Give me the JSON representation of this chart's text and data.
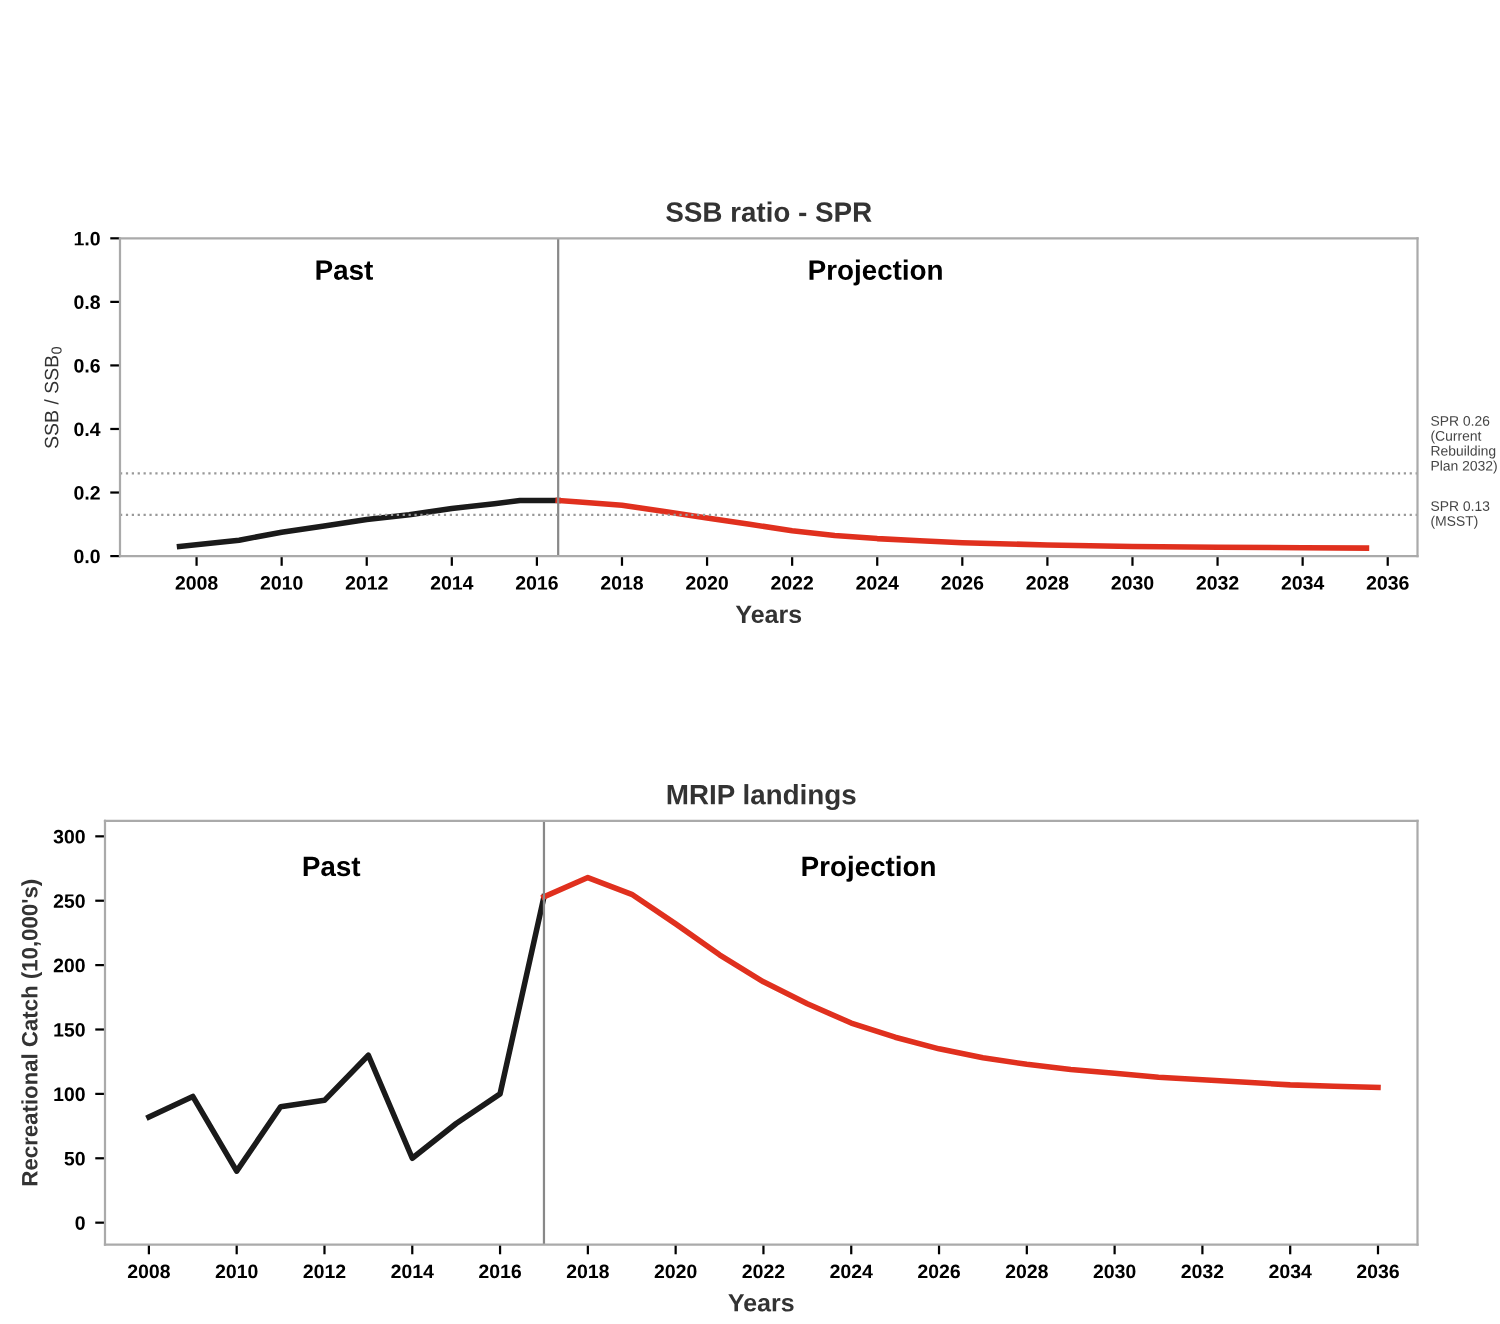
{
  "chart_data": [
    {
      "type": "line",
      "title": "SSB ratio - SPR",
      "xlabel": "Years",
      "ylabel": "SSB / SSB$_{0}$",
      "series": [
        {
          "color": "#1a1a1a",
          "x": [
            2007.6,
            2009,
            2010,
            2011,
            2012,
            2013,
            2014,
            2015,
            2015.6,
            2016.5
          ],
          "values": [
            0.03,
            0.05,
            0.075,
            0.095,
            0.115,
            0.13,
            0.15,
            0.165,
            0.175,
            0.175
          ]
        },
        {
          "color": "#e0301e",
          "x": [
            2016.5,
            2017,
            2018,
            2019,
            2020,
            2021,
            2022,
            2023,
            2024,
            2025,
            2026,
            2028,
            2030,
            2032,
            2034,
            2035.5
          ],
          "values": [
            0.175,
            0.17,
            0.16,
            0.14,
            0.12,
            0.1,
            0.08,
            0.065,
            0.055,
            0.048,
            0.042,
            0.035,
            0.03,
            0.028,
            0.026,
            0.025
          ]
        }
      ],
      "xlim": [
        2006.2,
        2036.7
      ],
      "xticks": [
        2008,
        2010,
        2012,
        2014,
        2016,
        2018,
        2020,
        2022,
        2024,
        2026,
        2028,
        2030,
        2032,
        2034,
        2036
      ],
      "ylim": [
        0,
        1.0
      ],
      "yticks": [
        {
          "value": 0,
          "label": "0.0"
        },
        0.2,
        0.4,
        0.6,
        0.8,
        {
          "value": 1.0,
          "label": "1.0"
        }
      ],
      "ref_lines": [
        {
          "axis": "x",
          "value": 2016.5,
          "color": "#888888",
          "line_style": "solid"
        },
        {
          "axis": "y",
          "value": 0.26,
          "label": "SPR 0.26 (Current Rebuilding Plan 2032)",
          "color": "#999999",
          "line_style": "dotted"
        },
        {
          "axis": "y",
          "value": 0.13,
          "label": "SPR 0.13 (MSST)",
          "color": "#999999",
          "line_style": "dotted"
        }
      ],
      "annotations": [
        "Past",
        "Projection"
      ],
      "grid": false,
      "line_style": "solid",
      "marker": "none"
    },
    {
      "type": "line",
      "title": "MRIP landings",
      "xlabel": "Years",
      "ylabel": "Recreational Catch (10,000's)",
      "series": [
        {
          "color": "#1a1a1a",
          "x": [
            2008,
            2009,
            2010,
            2011,
            2012,
            2013,
            2014,
            2015,
            2016,
            2017
          ],
          "values": [
            82,
            98,
            40,
            90,
            95,
            130,
            50,
            77,
            100,
            253
          ]
        },
        {
          "color": "#e0301e",
          "x": [
            2017,
            2018,
            2019,
            2020,
            2021,
            2022,
            2023,
            2024,
            2025,
            2026,
            2027,
            2028,
            2029,
            2030,
            2031,
            2032,
            2033,
            2034,
            2035,
            2036
          ],
          "values": [
            253,
            268,
            255,
            232,
            208,
            187,
            170,
            155,
            144,
            135,
            128,
            123,
            119,
            116,
            113,
            111,
            109,
            107,
            106,
            105
          ]
        }
      ],
      "xlim": [
        2007.0,
        2036.9
      ],
      "xticks": [
        2008,
        2010,
        2012,
        2014,
        2016,
        2018,
        2020,
        2022,
        2024,
        2026,
        2028,
        2030,
        2032,
        2034,
        2036
      ],
      "ylim": [
        -17,
        312
      ],
      "yticks": [
        0,
        50,
        100,
        150,
        200,
        250,
        300
      ],
      "ref_lines": [
        {
          "axis": "x",
          "value": 2017,
          "color": "#888888",
          "line_style": "solid"
        }
      ],
      "annotations": [
        "Past",
        "Projection"
      ],
      "grid": false,
      "line_style": "solid",
      "marker": "none"
    }
  ]
}
